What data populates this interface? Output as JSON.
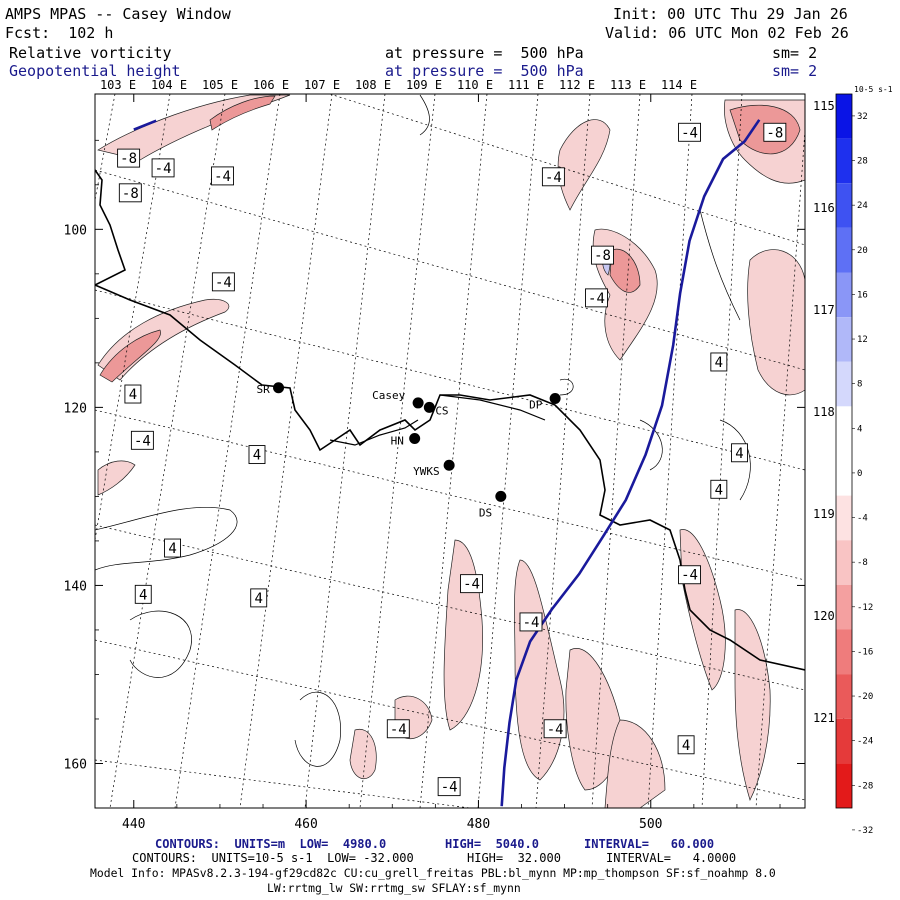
{
  "header": {
    "title": "AMPS MPAS -- Casey Window",
    "init": "Init: 00 UTC Thu 29 Jan 26",
    "fcst": "Fcst:  102 h",
    "valid": "Valid: 06 UTC Mon 02 Feb 26",
    "field1": {
      "name": "Relative vorticity",
      "level": "at pressure =  500 hPa",
      "sm": "sm= 2"
    },
    "field2": {
      "name": "Geopotential height",
      "level": "at pressure =  500 hPa",
      "sm": "sm= 2"
    }
  },
  "chart_data": {
    "type": "heatmap",
    "x_ticks": [
      "440",
      "460",
      "480",
      "500"
    ],
    "y_ticks": [
      "100",
      "120",
      "140",
      "160"
    ],
    "lon_labels": [
      "103 E",
      "104 E",
      "105 E",
      "106 E",
      "107 E",
      "108 E",
      "109 E",
      "110 E",
      "111 E",
      "112 E",
      "113 E",
      "114 E"
    ],
    "lat_labels": [
      "115 E",
      "116 E",
      "117 E",
      "118 E",
      "119 E",
      "120 E",
      "121 E"
    ],
    "colorbar": {
      "unit": "10-5 s-1",
      "ticks": [
        "32",
        "28",
        "24",
        "20",
        "16",
        "12",
        "8",
        "4",
        "0",
        "-4",
        "-8",
        "-12",
        "-16",
        "-20",
        "-24",
        "-28",
        "-32"
      ]
    },
    "stations": [
      {
        "name": "SR",
        "x": 456.8,
        "y": 117.8
      },
      {
        "name": "Casey",
        "x": 473.0,
        "y": 119.5
      },
      {
        "name": "CS",
        "x": 474.3,
        "y": 120.0
      },
      {
        "name": "HN",
        "x": 472.6,
        "y": 123.5
      },
      {
        "name": "YWKS",
        "x": 476.6,
        "y": 126.5
      },
      {
        "name": "DS",
        "x": 482.6,
        "y": 130.0
      },
      {
        "name": "DP",
        "x": 488.9,
        "y": 119.0
      }
    ],
    "contour_labels": [
      {
        "text": "-8",
        "x": 439.4,
        "y": 92.0
      },
      {
        "text": "-4",
        "x": 443.4,
        "y": 93.1
      },
      {
        "text": "-8",
        "x": 439.6,
        "y": 95.9
      },
      {
        "text": "-4",
        "x": 450.3,
        "y": 94.0
      },
      {
        "text": "-4",
        "x": 450.4,
        "y": 105.9
      },
      {
        "text": "4",
        "x": 439.9,
        "y": 118.5
      },
      {
        "text": "-4",
        "x": 441.0,
        "y": 123.7
      },
      {
        "text": "4",
        "x": 454.3,
        "y": 125.3
      },
      {
        "text": "4",
        "x": 444.5,
        "y": 135.8
      },
      {
        "text": "4",
        "x": 441.1,
        "y": 141.0
      },
      {
        "text": "4",
        "x": 454.5,
        "y": 141.4
      },
      {
        "text": "-4",
        "x": 479.2,
        "y": 139.8
      },
      {
        "text": "-4",
        "x": 486.1,
        "y": 144.1
      },
      {
        "text": "-4",
        "x": 470.7,
        "y": 156.1
      },
      {
        "text": "-4",
        "x": 488.9,
        "y": 156.1
      },
      {
        "text": "-4",
        "x": 476.6,
        "y": 162.6
      },
      {
        "text": "-4",
        "x": 488.7,
        "y": 94.1
      },
      {
        "text": "-8",
        "x": 494.4,
        "y": 102.9
      },
      {
        "text": "-4",
        "x": 493.7,
        "y": 107.7
      },
      {
        "text": "-4",
        "x": 504.5,
        "y": 89.1
      },
      {
        "text": "-8",
        "x": 514.4,
        "y": 89.1
      },
      {
        "text": "4",
        "x": 507.9,
        "y": 114.9
      },
      {
        "text": "4",
        "x": 510.3,
        "y": 125.1
      },
      {
        "text": "4",
        "x": 507.9,
        "y": 129.2
      },
      {
        "text": "-4",
        "x": 504.5,
        "y": 138.8
      },
      {
        "text": "4",
        "x": 504.1,
        "y": 157.9
      }
    ],
    "geopotential_contours": [
      {
        "label": "",
        "path": [
          [
            440.0,
            88.8
          ],
          [
            442.6,
            87.8
          ]
        ]
      },
      {
        "label": "",
        "path": [
          [
            482.7,
            164.8
          ],
          [
            483.0,
            160.5
          ],
          [
            483.6,
            155.4
          ],
          [
            484.4,
            150.6
          ],
          [
            486.0,
            146.3
          ],
          [
            488.5,
            142.7
          ],
          [
            491.7,
            138.7
          ],
          [
            494.6,
            134.3
          ],
          [
            497.1,
            130.4
          ],
          [
            499.4,
            125.3
          ],
          [
            501.3,
            119.8
          ],
          [
            502.6,
            113.0
          ],
          [
            503.4,
            107.2
          ],
          [
            504.5,
            101.3
          ],
          [
            506.2,
            96.3
          ],
          [
            508.4,
            92.1
          ],
          [
            510.9,
            90.1
          ],
          [
            512.6,
            87.7
          ]
        ]
      }
    ],
    "x_range": [
      435.5,
      517.9
    ],
    "y_range": [
      84.8,
      165.0
    ]
  },
  "footer": {
    "line1": {
      "prefix": "CONTOURS:  UNITS=m  LOW=  4980.0",
      "high": "HIGH=  5040.0",
      "interval": "INTERVAL=   60.000"
    },
    "line2": {
      "prefix": "CONTOURS:  UNITS=10-5 s-1  LOW= -32.000",
      "high": "HIGH=  32.000",
      "interval": "INTERVAL=   4.0000"
    },
    "line3": "Model Info: MPASv8.2.3-194-gf29cd82c CU:cu_grell_freitas PBL:bl_mynn MP:mp_thompson SF:sf_noahmp 8.0",
    "line4": "LW:rrtmg_lw SW:rrtmg_sw SFLAY:sf_mynn"
  },
  "colors": {
    "geopotential": "#1a1a9c",
    "negative_fill": "#f6d2d2",
    "strong_negative_fill": "#ec9898",
    "positive_fill": "#c8c8f2"
  }
}
